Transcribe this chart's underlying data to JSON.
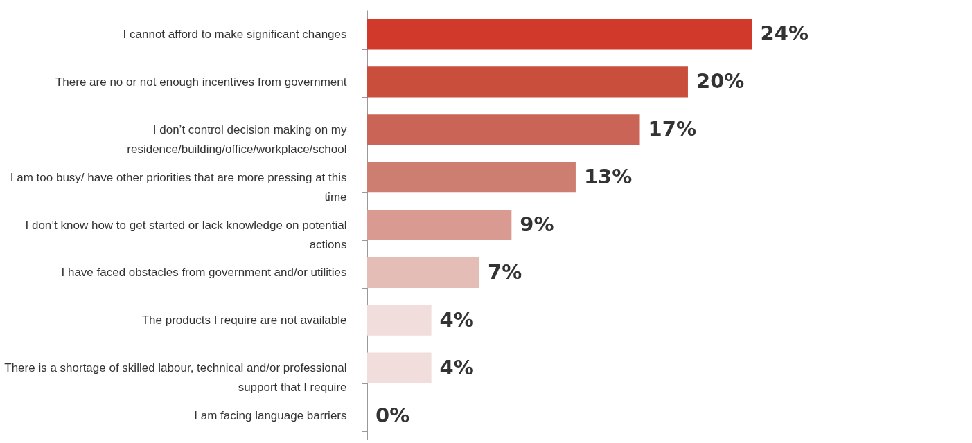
{
  "chart_data": {
    "type": "bar",
    "orientation": "horizontal",
    "categories": [
      "I cannot afford to make significant changes",
      "There are no or not enough incentives from government",
      "I don’t control decision making on my residence/building/office/workplace/school",
      "I am too busy/ have other priorities that are more pressing at this time",
      "I don’t know how to get started or lack knowledge on potential actions",
      "I have faced obstacles from government and/or utilities",
      "The products I require are not available",
      "There is a shortage of skilled labour, technical and/or professional support that I require",
      "I am facing language barriers"
    ],
    "values": [
      24,
      20,
      17,
      13,
      9,
      7,
      4,
      4,
      0
    ],
    "value_labels": [
      "24%",
      "20%",
      "17%",
      "13%",
      "9%",
      "7%",
      "4%",
      "4%",
      "0%"
    ],
    "colors": [
      "#d13a2a",
      "#c94e3b",
      "#c96457",
      "#cd7e70",
      "#d99a92",
      "#e4bdb7",
      "#f1dedc",
      "#f1dedc",
      "#f1dedc"
    ]
  }
}
